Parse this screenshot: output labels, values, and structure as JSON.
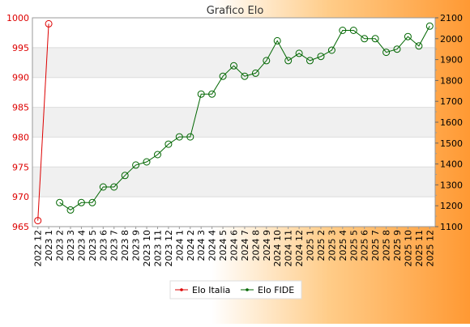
{
  "chart_data": {
    "type": "line",
    "title": "Grafico Elo",
    "categories": [
      "2022 12",
      "2023 1",
      "2023 2",
      "2023 3",
      "2023 4",
      "2023 5",
      "2023 6",
      "2023 7",
      "2023 8",
      "2023 9",
      "2023 10",
      "2023 11",
      "2023 12",
      "2024 1",
      "2024 2",
      "2024 3",
      "2024 4",
      "2024 5",
      "2024 6",
      "2024 7",
      "2024 8",
      "2024 9",
      "2024 10",
      "2024 11",
      "2024 12",
      "2025 1",
      "2025 2",
      "2025 3",
      "2025 4",
      "2025 5",
      "2025 6",
      "2025 7",
      "2025 8",
      "2025 9",
      "2025 10",
      "2025 11",
      "2025 12"
    ],
    "y_left": {
      "min": 965,
      "max": 1000,
      "ticks": [
        965,
        970,
        975,
        980,
        985,
        990,
        995,
        1000
      ]
    },
    "y_right": {
      "min": 1100,
      "max": 2100,
      "ticks": [
        1100,
        1200,
        1300,
        1400,
        1500,
        1600,
        1700,
        1800,
        1900,
        2000,
        2100
      ]
    },
    "series": [
      {
        "name": "Elo Italia",
        "axis": "left",
        "color": "#dd0000",
        "values": [
          966,
          999,
          null,
          null,
          null,
          null,
          null,
          null,
          null,
          null,
          null,
          null,
          null,
          null,
          null,
          null,
          null,
          null,
          null,
          null,
          null,
          null,
          null,
          null,
          null,
          null,
          null,
          null,
          null,
          null,
          null,
          null,
          null,
          null,
          null,
          null,
          null
        ]
      },
      {
        "name": "Elo FIDE",
        "axis": "right",
        "color": "#006600",
        "values": [
          null,
          null,
          1215,
          1180,
          1215,
          1215,
          1290,
          1290,
          1345,
          1395,
          1410,
          1445,
          1495,
          1530,
          1530,
          1735,
          1735,
          1820,
          1870,
          1820,
          1835,
          1895,
          1990,
          1895,
          1930,
          1895,
          1915,
          1945,
          2040,
          2040,
          2000,
          2000,
          1935,
          1950,
          2010,
          1965,
          2060
        ]
      }
    ],
    "grid": true,
    "legend": "bottom-center"
  }
}
